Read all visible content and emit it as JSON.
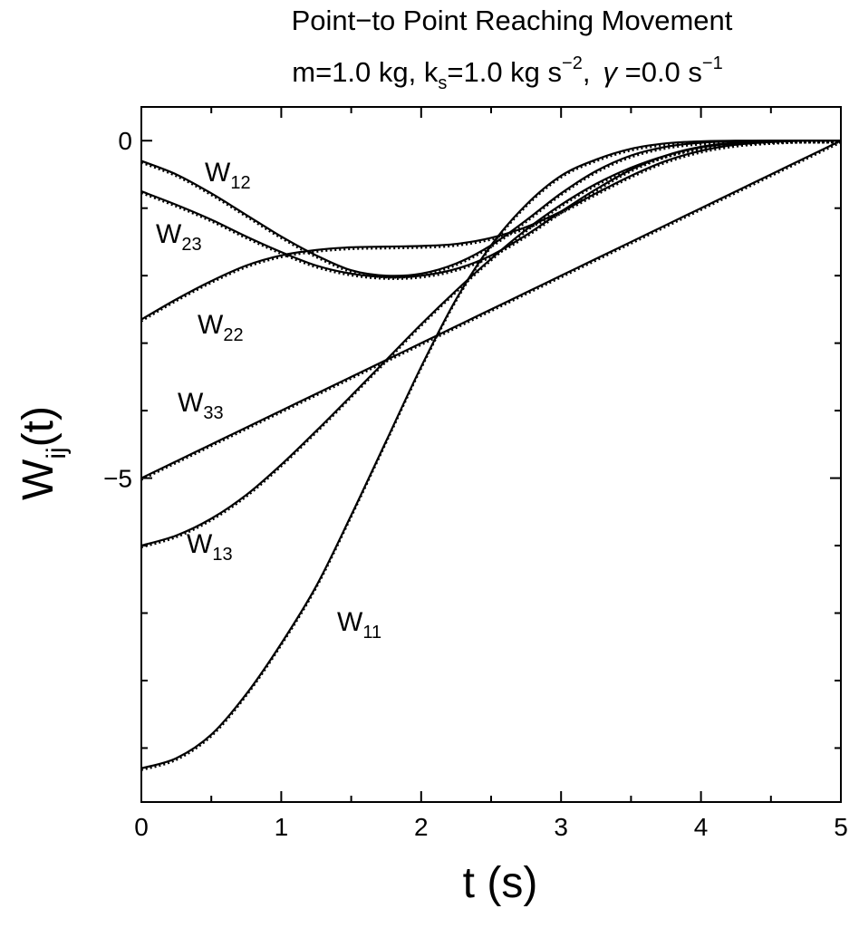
{
  "chart_data": {
    "type": "line",
    "title": "Point−to Point Reaching Movement",
    "subtitle": {
      "m_part": "m=1.0 kg, k",
      "ks_sub": "s",
      "ks_part": "=1.0 kg s",
      "ks_exp": "−2",
      "sep": ",",
      "gamma_symbol": "γ",
      "gamma_part": " =0.0 s",
      "gamma_exp": "−1"
    },
    "xlabel": "t (s)",
    "ylabel": {
      "base": "W",
      "sub": "ij",
      "suffix": "(t)"
    },
    "xlim": [
      0,
      5
    ],
    "ylim": [
      -9.8,
      0.5
    ],
    "x_ticks": [
      {
        "value": 0,
        "label": "0"
      },
      {
        "value": 1,
        "label": "1"
      },
      {
        "value": 2,
        "label": "2"
      },
      {
        "value": 3,
        "label": "3"
      },
      {
        "value": 4,
        "label": "4"
      },
      {
        "value": 5,
        "label": "5"
      }
    ],
    "y_ticks": [
      {
        "value": 0,
        "label": "0"
      },
      {
        "value": -5,
        "label": "−5"
      }
    ],
    "x_minor_step": 0.5,
    "y_minor_step": 1,
    "grid": false,
    "line_color": "#000000",
    "x": [
      0,
      0.25,
      0.5,
      0.75,
      1,
      1.25,
      1.5,
      1.75,
      2,
      2.25,
      2.5,
      2.75,
      3,
      3.25,
      3.5,
      3.75,
      4,
      4.25,
      4.5,
      4.75,
      5
    ],
    "series": [
      {
        "name": "W11",
        "label_base": "W",
        "label_sub": "11",
        "values": [
          -9.3,
          -9.15,
          -8.8,
          -8.2,
          -7.45,
          -6.6,
          -5.55,
          -4.45,
          -3.35,
          -2.35,
          -1.55,
          -0.95,
          -0.52,
          -0.28,
          -0.12,
          -0.04,
          -0.01,
          0,
          0,
          0,
          0
        ]
      },
      {
        "name": "W12",
        "label_base": "W",
        "label_sub": "12",
        "values": [
          -0.3,
          -0.5,
          -0.78,
          -1.1,
          -1.42,
          -1.7,
          -1.92,
          -2.0,
          -1.97,
          -1.82,
          -1.55,
          -1.18,
          -0.78,
          -0.45,
          -0.22,
          -0.09,
          -0.03,
          -0.01,
          0,
          0,
          0
        ]
      },
      {
        "name": "W13",
        "label_base": "W",
        "label_sub": "13",
        "values": [
          -6.0,
          -5.85,
          -5.6,
          -5.25,
          -4.8,
          -4.3,
          -3.78,
          -3.25,
          -2.72,
          -2.22,
          -1.75,
          -1.32,
          -0.95,
          -0.64,
          -0.4,
          -0.22,
          -0.1,
          -0.04,
          -0.01,
          0,
          0
        ]
      },
      {
        "name": "W22",
        "label_base": "W",
        "label_sub": "22",
        "values": [
          -2.65,
          -2.35,
          -2.08,
          -1.85,
          -1.7,
          -1.62,
          -1.58,
          -1.57,
          -1.56,
          -1.53,
          -1.44,
          -1.28,
          -1.05,
          -0.78,
          -0.52,
          -0.3,
          -0.15,
          -0.06,
          -0.02,
          0,
          0
        ]
      },
      {
        "name": "W23",
        "label_base": "W",
        "label_sub": "23",
        "values": [
          -0.75,
          -0.95,
          -1.17,
          -1.42,
          -1.65,
          -1.85,
          -1.97,
          -2.02,
          -2.0,
          -1.9,
          -1.7,
          -1.4,
          -1.05,
          -0.72,
          -0.43,
          -0.22,
          -0.09,
          -0.03,
          -0.01,
          0,
          0
        ]
      },
      {
        "name": "W33",
        "label_base": "W",
        "label_sub": "33",
        "values": [
          -5.0,
          -4.75,
          -4.5,
          -4.25,
          -4.0,
          -3.75,
          -3.5,
          -3.25,
          -3.0,
          -2.75,
          -2.5,
          -2.25,
          -2.0,
          -1.75,
          -1.5,
          -1.25,
          -1.0,
          -0.75,
          -0.5,
          -0.25,
          0
        ]
      }
    ]
  }
}
